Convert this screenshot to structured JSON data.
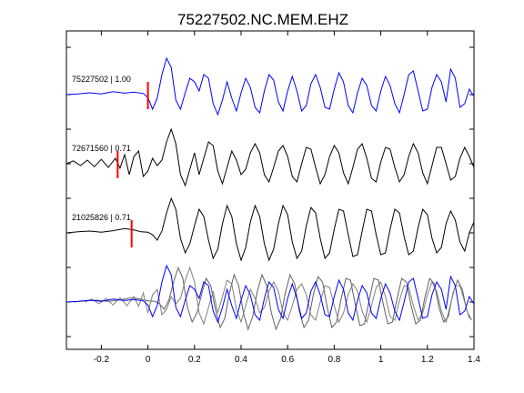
{
  "chart_data": {
    "type": "line",
    "title": "75227502.NC.MEM.EHZ",
    "xlabel": "",
    "ylabel": "",
    "xlim": [
      -0.35,
      1.4
    ],
    "x_ticks": [
      -0.2,
      0,
      0.2,
      0.4,
      0.6,
      0.8,
      1,
      1.2,
      1.4
    ],
    "x_tick_labels": [
      "-0.2",
      "0",
      "0.2",
      "0.4",
      "0.6",
      "0.8",
      "1",
      "1.2",
      "1.4"
    ],
    "grid": false,
    "legend": "none",
    "colors": {
      "primary": "#0000ff",
      "correlated": "#000000",
      "overlay": "#808080",
      "pick": "#ff0000"
    },
    "traces": [
      {
        "label": "75227502 | 1.00",
        "event_id": "75227502",
        "correlation": 1.0,
        "color": "#0000ff",
        "pick_time": 0.0,
        "lag": 0.0,
        "points": [
          [
            -0.35,
            0.0
          ],
          [
            -0.3,
            0.02
          ],
          [
            -0.25,
            0.05
          ],
          [
            -0.2,
            0.02
          ],
          [
            -0.15,
            0.08
          ],
          [
            -0.1,
            0.04
          ],
          [
            -0.06,
            0.07
          ],
          [
            -0.02,
            0.03
          ],
          [
            0.0,
            -0.08
          ],
          [
            0.02,
            -0.4
          ],
          [
            0.04,
            -0.1
          ],
          [
            0.06,
            0.55
          ],
          [
            0.08,
            1.0
          ],
          [
            0.1,
            0.75
          ],
          [
            0.12,
            -0.15
          ],
          [
            0.14,
            -0.4
          ],
          [
            0.16,
            0.05
          ],
          [
            0.18,
            0.45
          ],
          [
            0.2,
            0.35
          ],
          [
            0.22,
            0.1
          ],
          [
            0.24,
            0.55
          ],
          [
            0.26,
            0.45
          ],
          [
            0.28,
            -0.25
          ],
          [
            0.3,
            -0.55
          ],
          [
            0.32,
            -0.15
          ],
          [
            0.34,
            0.35
          ],
          [
            0.36,
            -0.1
          ],
          [
            0.38,
            -0.45
          ],
          [
            0.4,
            0.05
          ],
          [
            0.42,
            0.45
          ],
          [
            0.44,
            0.2
          ],
          [
            0.46,
            -0.35
          ],
          [
            0.48,
            -0.5
          ],
          [
            0.5,
            0.1
          ],
          [
            0.52,
            0.55
          ],
          [
            0.54,
            0.4
          ],
          [
            0.56,
            -0.2
          ],
          [
            0.58,
            -0.45
          ],
          [
            0.6,
            0.1
          ],
          [
            0.62,
            0.5
          ],
          [
            0.64,
            0.1
          ],
          [
            0.66,
            -0.45
          ],
          [
            0.68,
            -0.3
          ],
          [
            0.7,
            0.3
          ],
          [
            0.72,
            0.55
          ],
          [
            0.74,
            0.2
          ],
          [
            0.76,
            -0.35
          ],
          [
            0.78,
            -0.4
          ],
          [
            0.8,
            0.15
          ],
          [
            0.82,
            0.6
          ],
          [
            0.84,
            0.35
          ],
          [
            0.86,
            -0.3
          ],
          [
            0.88,
            -0.5
          ],
          [
            0.9,
            0.05
          ],
          [
            0.92,
            0.45
          ],
          [
            0.94,
            0.25
          ],
          [
            0.96,
            -0.3
          ],
          [
            0.98,
            -0.45
          ],
          [
            1.0,
            0.1
          ],
          [
            1.02,
            0.5
          ],
          [
            1.04,
            0.25
          ],
          [
            1.06,
            -0.25
          ],
          [
            1.08,
            -0.5
          ],
          [
            1.1,
            0.0
          ],
          [
            1.12,
            0.55
          ],
          [
            1.14,
            0.65
          ],
          [
            1.16,
            0.1
          ],
          [
            1.18,
            -0.45
          ],
          [
            1.2,
            -0.4
          ],
          [
            1.22,
            0.2
          ],
          [
            1.24,
            0.55
          ],
          [
            1.26,
            0.35
          ],
          [
            1.28,
            -0.2
          ],
          [
            1.3,
            0.7
          ],
          [
            1.32,
            0.45
          ],
          [
            1.34,
            -0.35
          ],
          [
            1.36,
            -0.25
          ],
          [
            1.38,
            0.15
          ],
          [
            1.4,
            -0.05
          ]
        ]
      },
      {
        "label": "72671560 | 0.71",
        "event_id": "72671560",
        "correlation": 0.71,
        "color": "#000000",
        "pick_time": -0.13,
        "lag": 0.08,
        "points": [
          [
            -0.35,
            0.0
          ],
          [
            -0.32,
            0.08
          ],
          [
            -0.29,
            -0.05
          ],
          [
            -0.26,
            0.1
          ],
          [
            -0.23,
            -0.08
          ],
          [
            -0.2,
            0.12
          ],
          [
            -0.17,
            -0.1
          ],
          [
            -0.14,
            0.15
          ],
          [
            -0.12,
            -0.12
          ],
          [
            -0.1,
            0.25
          ],
          [
            -0.08,
            -0.3
          ],
          [
            -0.06,
            0.2
          ],
          [
            -0.04,
            0.35
          ],
          [
            -0.02,
            -0.35
          ],
          [
            0.0,
            -0.2
          ],
          [
            0.02,
            0.15
          ],
          [
            0.04,
            -0.05
          ],
          [
            0.06,
            0.1
          ],
          [
            0.08,
            0.6
          ],
          [
            0.1,
            0.95
          ],
          [
            0.12,
            0.55
          ],
          [
            0.14,
            -0.3
          ],
          [
            0.16,
            -0.6
          ],
          [
            0.18,
            -0.15
          ],
          [
            0.2,
            0.3
          ],
          [
            0.22,
            -0.3
          ],
          [
            0.24,
            0.15
          ],
          [
            0.26,
            0.6
          ],
          [
            0.28,
            0.5
          ],
          [
            0.3,
            -0.2
          ],
          [
            0.32,
            -0.55
          ],
          [
            0.34,
            -0.1
          ],
          [
            0.36,
            0.35
          ],
          [
            0.38,
            0.1
          ],
          [
            0.4,
            -0.3
          ],
          [
            0.42,
            -0.15
          ],
          [
            0.44,
            0.3
          ],
          [
            0.46,
            0.55
          ],
          [
            0.48,
            0.3
          ],
          [
            0.5,
            -0.3
          ],
          [
            0.52,
            -0.5
          ],
          [
            0.54,
            -0.1
          ],
          [
            0.56,
            0.35
          ],
          [
            0.58,
            0.5
          ],
          [
            0.6,
            0.2
          ],
          [
            0.62,
            -0.35
          ],
          [
            0.64,
            -0.5
          ],
          [
            0.66,
            0.0
          ],
          [
            0.68,
            0.45
          ],
          [
            0.7,
            0.4
          ],
          [
            0.72,
            -0.1
          ],
          [
            0.74,
            -0.55
          ],
          [
            0.76,
            -0.3
          ],
          [
            0.78,
            0.2
          ],
          [
            0.8,
            0.5
          ],
          [
            0.82,
            0.3
          ],
          [
            0.84,
            -0.25
          ],
          [
            0.86,
            -0.55
          ],
          [
            0.88,
            -0.1
          ],
          [
            0.9,
            0.4
          ],
          [
            0.92,
            0.55
          ],
          [
            0.94,
            0.15
          ],
          [
            0.96,
            -0.4
          ],
          [
            0.98,
            -0.5
          ],
          [
            1.0,
            0.05
          ],
          [
            1.02,
            0.45
          ],
          [
            1.04,
            0.4
          ],
          [
            1.06,
            -0.1
          ],
          [
            1.08,
            -0.5
          ],
          [
            1.1,
            -0.3
          ],
          [
            1.12,
            0.2
          ],
          [
            1.14,
            0.55
          ],
          [
            1.16,
            0.3
          ],
          [
            1.18,
            -0.25
          ],
          [
            1.2,
            -0.55
          ],
          [
            1.22,
            -0.05
          ],
          [
            1.24,
            0.45
          ],
          [
            1.26,
            0.45
          ],
          [
            1.28,
            0.0
          ],
          [
            1.3,
            -0.45
          ],
          [
            1.32,
            -0.35
          ],
          [
            1.34,
            0.15
          ],
          [
            1.36,
            0.45
          ],
          [
            1.38,
            0.2
          ],
          [
            1.4,
            -0.1
          ]
        ]
      },
      {
        "label": "21025826 | 0.71",
        "event_id": "21025826",
        "correlation": 0.71,
        "color": "#000000",
        "pick_time": -0.07,
        "lag": 0.03,
        "points": [
          [
            -0.35,
            0.0
          ],
          [
            -0.3,
            0.03
          ],
          [
            -0.25,
            0.05
          ],
          [
            -0.2,
            0.02
          ],
          [
            -0.15,
            0.06
          ],
          [
            -0.1,
            0.12
          ],
          [
            -0.06,
            0.08
          ],
          [
            -0.03,
            0.03
          ],
          [
            0.0,
            0.02
          ],
          [
            0.02,
            -0.05
          ],
          [
            0.04,
            -0.2
          ],
          [
            0.06,
            0.05
          ],
          [
            0.08,
            0.55
          ],
          [
            0.1,
            0.95
          ],
          [
            0.12,
            0.65
          ],
          [
            0.14,
            -0.15
          ],
          [
            0.16,
            -0.55
          ],
          [
            0.18,
            -0.3
          ],
          [
            0.2,
            0.2
          ],
          [
            0.22,
            0.65
          ],
          [
            0.24,
            0.45
          ],
          [
            0.26,
            -0.2
          ],
          [
            0.28,
            -0.7
          ],
          [
            0.3,
            -0.45
          ],
          [
            0.32,
            0.25
          ],
          [
            0.34,
            0.75
          ],
          [
            0.36,
            0.45
          ],
          [
            0.38,
            -0.3
          ],
          [
            0.4,
            -0.75
          ],
          [
            0.42,
            -0.4
          ],
          [
            0.44,
            0.3
          ],
          [
            0.46,
            0.75
          ],
          [
            0.48,
            0.45
          ],
          [
            0.5,
            -0.3
          ],
          [
            0.52,
            -0.75
          ],
          [
            0.54,
            -0.45
          ],
          [
            0.56,
            0.25
          ],
          [
            0.58,
            0.75
          ],
          [
            0.6,
            0.5
          ],
          [
            0.62,
            -0.25
          ],
          [
            0.64,
            -0.7
          ],
          [
            0.66,
            -0.5
          ],
          [
            0.68,
            0.2
          ],
          [
            0.7,
            0.7
          ],
          [
            0.72,
            0.55
          ],
          [
            0.74,
            -0.15
          ],
          [
            0.76,
            -0.7
          ],
          [
            0.78,
            -0.55
          ],
          [
            0.8,
            0.1
          ],
          [
            0.82,
            0.65
          ],
          [
            0.84,
            0.6
          ],
          [
            0.86,
            -0.05
          ],
          [
            0.88,
            -0.65
          ],
          [
            0.9,
            -0.6
          ],
          [
            0.92,
            0.05
          ],
          [
            0.94,
            0.65
          ],
          [
            0.96,
            0.6
          ],
          [
            0.98,
            -0.05
          ],
          [
            1.0,
            -0.6
          ],
          [
            1.02,
            -0.55
          ],
          [
            1.04,
            0.1
          ],
          [
            1.06,
            0.65
          ],
          [
            1.08,
            0.55
          ],
          [
            1.1,
            -0.1
          ],
          [
            1.12,
            -0.6
          ],
          [
            1.14,
            -0.5
          ],
          [
            1.16,
            0.15
          ],
          [
            1.18,
            0.65
          ],
          [
            1.2,
            0.5
          ],
          [
            1.22,
            -0.15
          ],
          [
            1.24,
            -0.55
          ],
          [
            1.26,
            -0.4
          ],
          [
            1.28,
            0.25
          ],
          [
            1.3,
            0.6
          ],
          [
            1.32,
            0.35
          ],
          [
            1.34,
            -0.25
          ],
          [
            1.36,
            -0.5
          ],
          [
            1.38,
            0.0
          ],
          [
            1.4,
            0.3
          ]
        ]
      }
    ],
    "overlay_note": "bottom panel overlays all traces aligned by lag"
  }
}
